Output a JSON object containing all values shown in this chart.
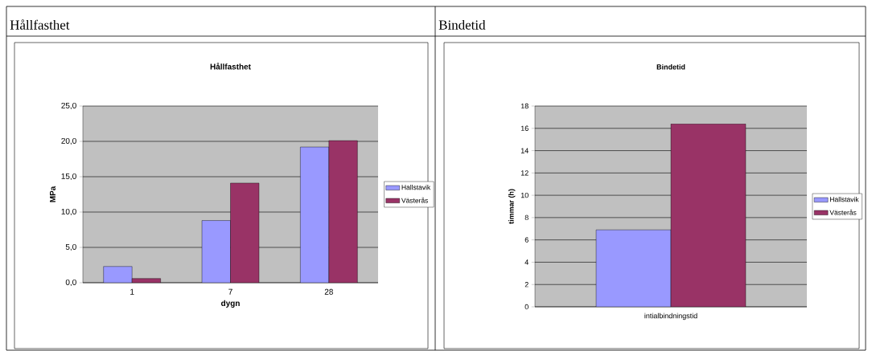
{
  "chart_data": [
    {
      "type": "bar",
      "title": "Hållfasthet",
      "annotations": [
        "Hållfasthet"
      ],
      "xlabel": "dygn",
      "ylabel": "MPa",
      "categories": [
        "1",
        "7",
        "28"
      ],
      "series": [
        {
          "name": "Hallstavik",
          "color": "#9999ff",
          "values": [
            2.3,
            8.8,
            19.2
          ]
        },
        {
          "name": "Västerås",
          "color": "#993366",
          "values": [
            0.6,
            14.1,
            20.1
          ]
        }
      ],
      "ylim": [
        0,
        25
      ],
      "yticks": [
        {
          "value": 0,
          "label": "0,0"
        },
        {
          "value": 5,
          "label": "5,0"
        },
        {
          "value": 10,
          "label": "10,0"
        },
        {
          "value": 15,
          "label": "15,0"
        },
        {
          "value": 20,
          "label": "20,0"
        },
        {
          "value": 25,
          "label": "25,0"
        }
      ],
      "grid": "y",
      "legend": "right"
    },
    {
      "type": "bar",
      "title": "Bindetid",
      "annotations": [
        "Bindetid"
      ],
      "ylabel": "timmar (h)",
      "categories": [
        "intialbindningstid"
      ],
      "series": [
        {
          "name": "Hallstavik",
          "color": "#9999ff",
          "values": [
            6.9
          ]
        },
        {
          "name": "Västerås",
          "color": "#993366",
          "values": [
            16.4
          ]
        }
      ],
      "ylim": [
        0,
        18
      ],
      "yticks": [
        0,
        2,
        4,
        6,
        8,
        10,
        12,
        14,
        16,
        18
      ],
      "grid": "y",
      "legend": "right"
    }
  ]
}
